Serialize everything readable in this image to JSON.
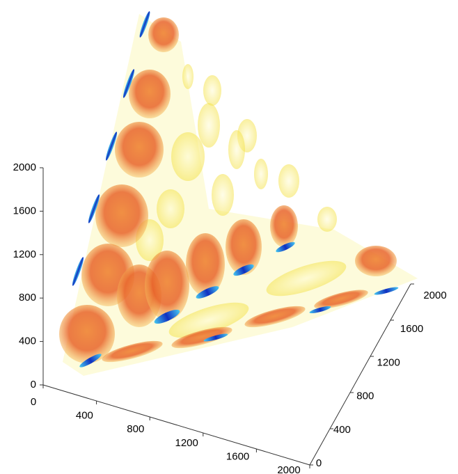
{
  "chart_data": {
    "type": "isosurface",
    "xlim": [
      0,
      2000
    ],
    "xticks": [
      0,
      400,
      800,
      1200,
      1600,
      2000
    ],
    "ylim": [
      0,
      2000
    ],
    "yticks": [
      0,
      400,
      800,
      1200,
      1600,
      2000
    ],
    "zlim": [
      0,
      2000
    ],
    "zticks": [
      0,
      400,
      800,
      1200,
      1600,
      2000
    ]
  }
}
